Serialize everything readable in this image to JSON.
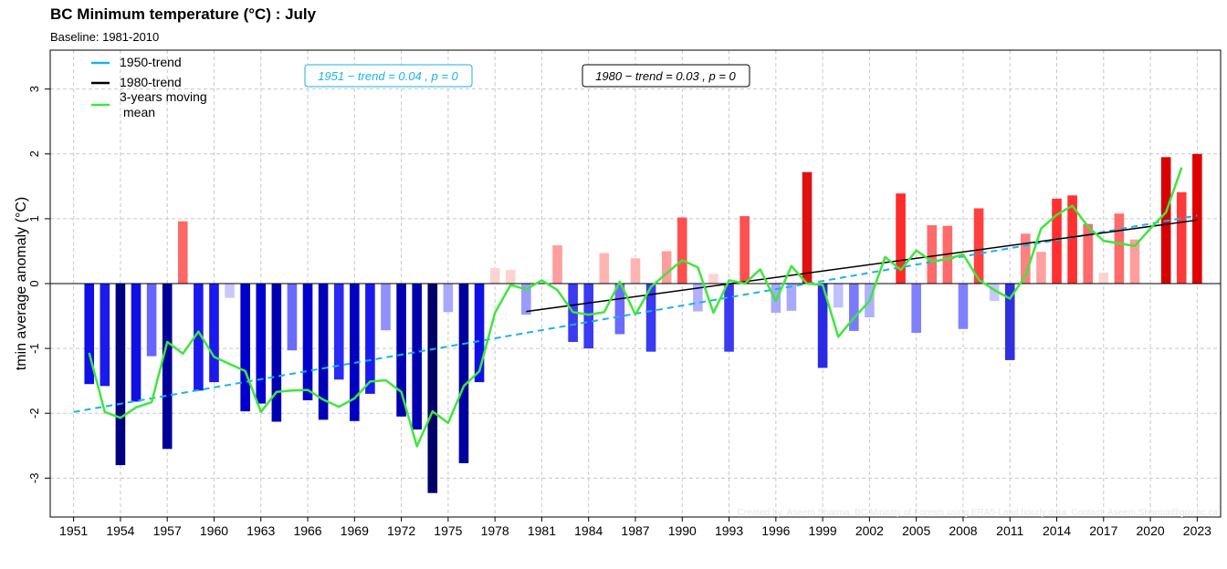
{
  "chart_data": {
    "type": "bar",
    "title": "BC Minimum temperature (°C) : July",
    "subtitle": "Baseline: 1981-2010",
    "ylabel": "tmin average anomaly (°C)",
    "xlabel": "",
    "ylim": [
      -3.6,
      3.6
    ],
    "xlim": [
      1949.5,
      2024.5
    ],
    "yticks": [
      -3,
      -2,
      -1,
      0,
      1,
      2,
      3
    ],
    "xticks": [
      1951,
      1954,
      1957,
      1960,
      1963,
      1966,
      1969,
      1972,
      1975,
      1978,
      1981,
      1984,
      1987,
      1990,
      1993,
      1996,
      1999,
      2002,
      2005,
      2008,
      2011,
      2014,
      2017,
      2020,
      2023
    ],
    "grid": true,
    "legend_position": "top-left",
    "years": [
      1952,
      1953,
      1954,
      1955,
      1956,
      1957,
      1958,
      1959,
      1960,
      1961,
      1962,
      1963,
      1964,
      1965,
      1966,
      1967,
      1968,
      1969,
      1970,
      1971,
      1972,
      1973,
      1974,
      1975,
      1976,
      1977,
      1978,
      1979,
      1980,
      1981,
      1982,
      1983,
      1984,
      1985,
      1986,
      1987,
      1988,
      1989,
      1990,
      1991,
      1992,
      1993,
      1994,
      1995,
      1996,
      1997,
      1998,
      1999,
      2000,
      2001,
      2002,
      2003,
      2004,
      2005,
      2006,
      2007,
      2008,
      2009,
      2010,
      2011,
      2012,
      2013,
      2014,
      2015,
      2016,
      2017,
      2018,
      2019,
      2020,
      2021,
      2022,
      2023
    ],
    "values": [
      -1.55,
      -1.58,
      -2.8,
      -1.82,
      -1.12,
      -2.55,
      0.96,
      -1.65,
      -1.52,
      -0.22,
      -1.97,
      -1.85,
      -2.13,
      -1.03,
      -1.8,
      -2.1,
      -1.48,
      -2.12,
      -1.7,
      -0.72,
      -2.05,
      -2.25,
      -3.23,
      -0.44,
      -2.77,
      -1.52,
      0.24,
      0.21,
      -0.48,
      0.0,
      0.59,
      -0.9,
      -1.0,
      0.47,
      -0.78,
      0.39,
      -1.05,
      0.5,
      1.02,
      -0.43,
      0.15,
      -1.05,
      1.04,
      0.0,
      -0.45,
      -0.42,
      1.72,
      -1.3,
      -0.37,
      -0.73,
      -0.52,
      0.0,
      1.39,
      -0.76,
      0.9,
      0.89,
      -0.7,
      1.16,
      -0.27,
      -1.18,
      0.77,
      0.49,
      1.31,
      1.36,
      0.92,
      0.17,
      1.08,
      0.68,
      0.0,
      1.95,
      1.41,
      2.0
    ],
    "colors": [
      "#1010e6",
      "#1a1aee",
      "#000080",
      "#1010e6",
      "#6666ff",
      "#00009a",
      "#ff6666",
      "#1a1aee",
      "#1a1aee",
      "#c8c8ff",
      "#0000cc",
      "#0000d0",
      "#0000b0",
      "#6a6aff",
      "#0000cc",
      "#0000b8",
      "#2a2af0",
      "#0000c0",
      "#1a1aee",
      "#9090ff",
      "#0000b0",
      "#0000b0",
      "#00006a",
      "#a8a8ff",
      "#0000a0",
      "#1010e6",
      "#ffd2d2",
      "#ffd2d2",
      "#9a9aff",
      "#ffffff",
      "#ff9e9e",
      "#3a3af0",
      "#3a3af0",
      "#ffb4b4",
      "#6a6aff",
      "#ffb4b4",
      "#3a3af0",
      "#ff9e9e",
      "#ff5050",
      "#b0b0ff",
      "#ffd2d2",
      "#3a3af0",
      "#ff5050",
      "#ffffff",
      "#a8a8ff",
      "#a8a8ff",
      "#e01010",
      "#2a2ae6",
      "#c0c0ff",
      "#7a7aff",
      "#b0b0ff",
      "#ffffff",
      "#ff2a2a",
      "#8080ff",
      "#ff6a6a",
      "#ff6a6a",
      "#8080ff",
      "#ff4040",
      "#c8c8ff",
      "#3030e0",
      "#ff8080",
      "#ffa0a0",
      "#ff3030",
      "#ff3030",
      "#ff6a6a",
      "#ffd2d2",
      "#ff6a6a",
      "#ff9e9e",
      "#ffffff",
      "#d80000",
      "#ff3a3a",
      "#e00000"
    ],
    "moving_mean": {
      "name": "3-years moving mean",
      "years": [
        1952,
        1953,
        1954,
        1955,
        1956,
        1957,
        1958,
        1959,
        1960,
        1961,
        1962,
        1963,
        1964,
        1965,
        1966,
        1967,
        1968,
        1969,
        1970,
        1971,
        1972,
        1973,
        1974,
        1975,
        1976,
        1977,
        1978,
        1979,
        1980,
        1981,
        1982,
        1983,
        1984,
        1985,
        1986,
        1987,
        1988,
        1989,
        1990,
        1991,
        1992,
        1993,
        1994,
        1995,
        1996,
        1997,
        1998,
        1999,
        2000,
        2001,
        2002,
        2003,
        2004,
        2005,
        2006,
        2007,
        2008,
        2009,
        2010,
        2011,
        2012,
        2013,
        2014,
        2015,
        2016,
        2017,
        2018,
        2019,
        2020,
        2021,
        2022
      ],
      "values": [
        -1.07,
        -1.98,
        -2.07,
        -1.91,
        -1.83,
        -0.9,
        -1.08,
        -0.74,
        -1.13,
        -1.24,
        -1.35,
        -1.98,
        -1.67,
        -1.65,
        -1.64,
        -1.79,
        -1.9,
        -1.77,
        -1.51,
        -1.49,
        -1.67,
        -2.51,
        -1.97,
        -2.15,
        -1.58,
        -1.35,
        -0.45,
        -0.02,
        -0.09,
        0.05,
        -0.1,
        -0.44,
        -0.48,
        -0.44,
        0.03,
        -0.48,
        -0.05,
        0.16,
        0.36,
        0.25,
        -0.45,
        0.05,
        0.0,
        0.22,
        -0.27,
        0.27,
        0.0,
        -0.02,
        -0.82,
        -0.53,
        -0.27,
        0.41,
        0.21,
        0.51,
        0.34,
        0.38,
        0.45,
        0.06,
        -0.1,
        -0.23,
        0.12,
        0.85,
        1.06,
        1.2,
        0.88,
        0.66,
        0.62,
        0.58,
        0.85,
        1.1,
        1.79
      ]
    },
    "trends": [
      {
        "name": "1950-trend",
        "start_year": 1951,
        "end_year": 2023,
        "start_value": -1.98,
        "end_value": 1.05,
        "color": "#1ab2ea",
        "style": "dashed",
        "label": "1951 − trend = 0.04 , p = 0"
      },
      {
        "name": "1980-trend",
        "start_year": 1980,
        "end_year": 2023,
        "start_value": -0.43,
        "end_value": 0.98,
        "color": "#000000",
        "style": "solid",
        "label": "1980 − trend = 0.03 , p = 0"
      }
    ],
    "legend": [
      {
        "name": "1950-trend",
        "color": "#1ab2ea"
      },
      {
        "name": "1980-trend",
        "color": "#000000"
      },
      {
        "name_line1": "3-years moving",
        "name_line2": "mean",
        "color": "#3ee63e"
      }
    ],
    "credit": "Created by: Aseem Sharma, BC Ministry of Forests using ERA5-Land hourly data. Contact: Aseem.Sharma@gov.bc.ca"
  }
}
